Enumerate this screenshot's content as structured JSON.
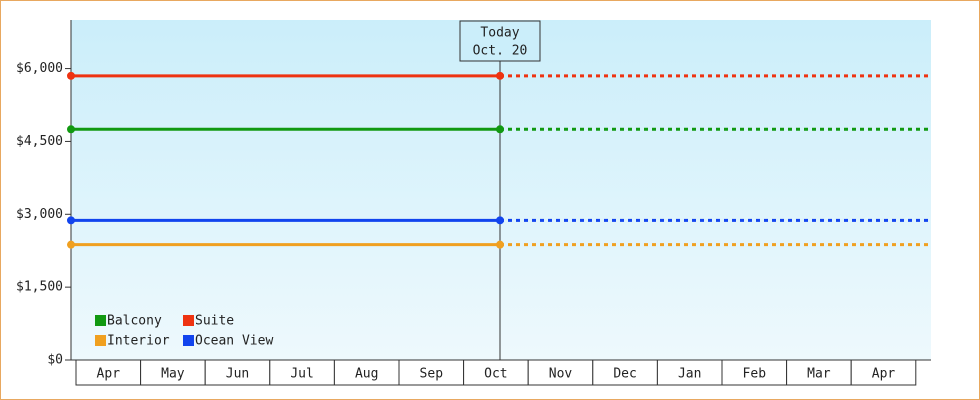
{
  "chart_data": {
    "type": "line",
    "categories": [
      "Apr",
      "May",
      "Jun",
      "Jul",
      "Aug",
      "Sep",
      "Oct",
      "Nov",
      "Dec",
      "Jan",
      "Feb",
      "Mar",
      "Apr"
    ],
    "series": [
      {
        "name": "Balcony",
        "color": "#119911",
        "values": [
          4750,
          4750,
          4750,
          4750,
          4750,
          4750,
          4750,
          null,
          null,
          null,
          null,
          null,
          null
        ]
      },
      {
        "name": "Suite",
        "color": "#ee3311",
        "values": [
          5850,
          5850,
          5850,
          5850,
          5850,
          5850,
          5850,
          null,
          null,
          null,
          null,
          null,
          null
        ]
      },
      {
        "name": "Interior",
        "color": "#f0a020",
        "values": [
          2375,
          2375,
          2375,
          2375,
          2375,
          2375,
          2375,
          null,
          null,
          null,
          null,
          null,
          null
        ]
      },
      {
        "name": "Ocean View",
        "color": "#1144ee",
        "values": [
          2875,
          2875,
          2875,
          2875,
          2875,
          2875,
          2875,
          null,
          null,
          null,
          null,
          null,
          null
        ]
      }
    ],
    "annotation": {
      "title": "Today",
      "date": "Oct. 20"
    },
    "ylim": [
      0,
      7000
    ],
    "yticks": [
      {
        "value": 0,
        "label": "$0"
      },
      {
        "value": 1500,
        "label": "$1,500"
      },
      {
        "value": 3000,
        "label": "$3,000"
      },
      {
        "value": 4500,
        "label": "$4,500"
      },
      {
        "value": 6000,
        "label": "$6,000"
      }
    ],
    "legend": "lower left"
  }
}
